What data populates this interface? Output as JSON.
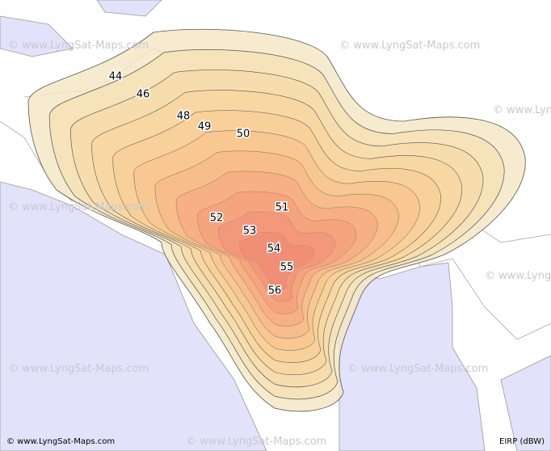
{
  "watermark": "© www.LyngSat-Maps.com",
  "contour_labels": [
    44,
    46,
    48,
    49,
    50,
    51,
    52,
    53,
    54,
    55,
    56
  ],
  "footer": {
    "credit": "© www.LyngSat-Maps.com",
    "unit": "EIRP (dBW)"
  }
}
